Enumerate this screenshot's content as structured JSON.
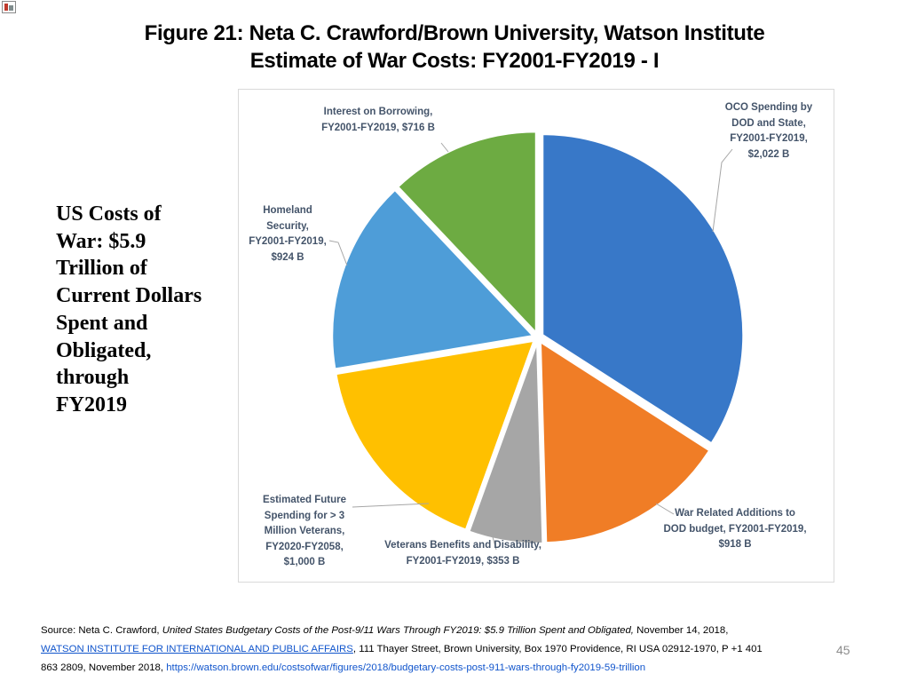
{
  "title": {
    "line1": "Figure 21: Neta C. Crawford/Brown University, Watson Institute",
    "line2": "Estimate of War Costs: FY2001-FY2019 - I"
  },
  "side_text": "US Costs of\nWar: $5.9\nTrillion of\nCurrent Dollars\nSpent and\nObligated,\nthrough\nFY2019",
  "chart_data": {
    "type": "pie",
    "slices": [
      {
        "label": "OCO Spending by\nDOD and State,\nFY2001-FY2019,\n$2,022 B",
        "value": 2022,
        "color": "#3878c8"
      },
      {
        "label": "War Related Additions to\nDOD budget, FY2001-FY2019,\n$918 B",
        "value": 918,
        "color": "#f07d26"
      },
      {
        "label": "Veterans Benefits and Disability,\nFY2001-FY2019,  $353 B",
        "value": 353,
        "color": "#a6a6a6"
      },
      {
        "label": "Estimated Future\nSpending for > 3\nMillion Veterans,\nFY2020-FY2058,\n$1,000 B",
        "value": 1000,
        "color": "#ffc000"
      },
      {
        "label": "Homeland\nSecurity,\nFY2001-FY2019,\n$924 B",
        "value": 924,
        "color": "#4e9dd8"
      },
      {
        "label": "Interest on Borrowing,\nFY2001-FY2019,  $716 B",
        "value": 716,
        "color": "#6dab42"
      }
    ],
    "label_color": "#44546a"
  },
  "source": {
    "prefix": "Source: Neta C. Crawford, ",
    "italic_title": "United States Budgetary Costs of the Post-9/11 Wars Through FY2019: $5.9 Trillion Spent and Obligated,",
    "date": "  November 14, 2018,",
    "institute_link": "WATSON INSTITUTE FOR INTERNATIONAL AND PUBLIC AFFAIRS",
    "address": ", 111 Thayer Street,   Brown University, Box 1970   Providence, RI USA   02912-1970, P +1 401",
    "phone_tail": "863 2809, November 2018, ",
    "url": "https://watson.brown.edu/costsofwar/figures/2018/budgetary-costs-post-911-wars-through-fy2019-59-trillion"
  },
  "page_number": "45"
}
